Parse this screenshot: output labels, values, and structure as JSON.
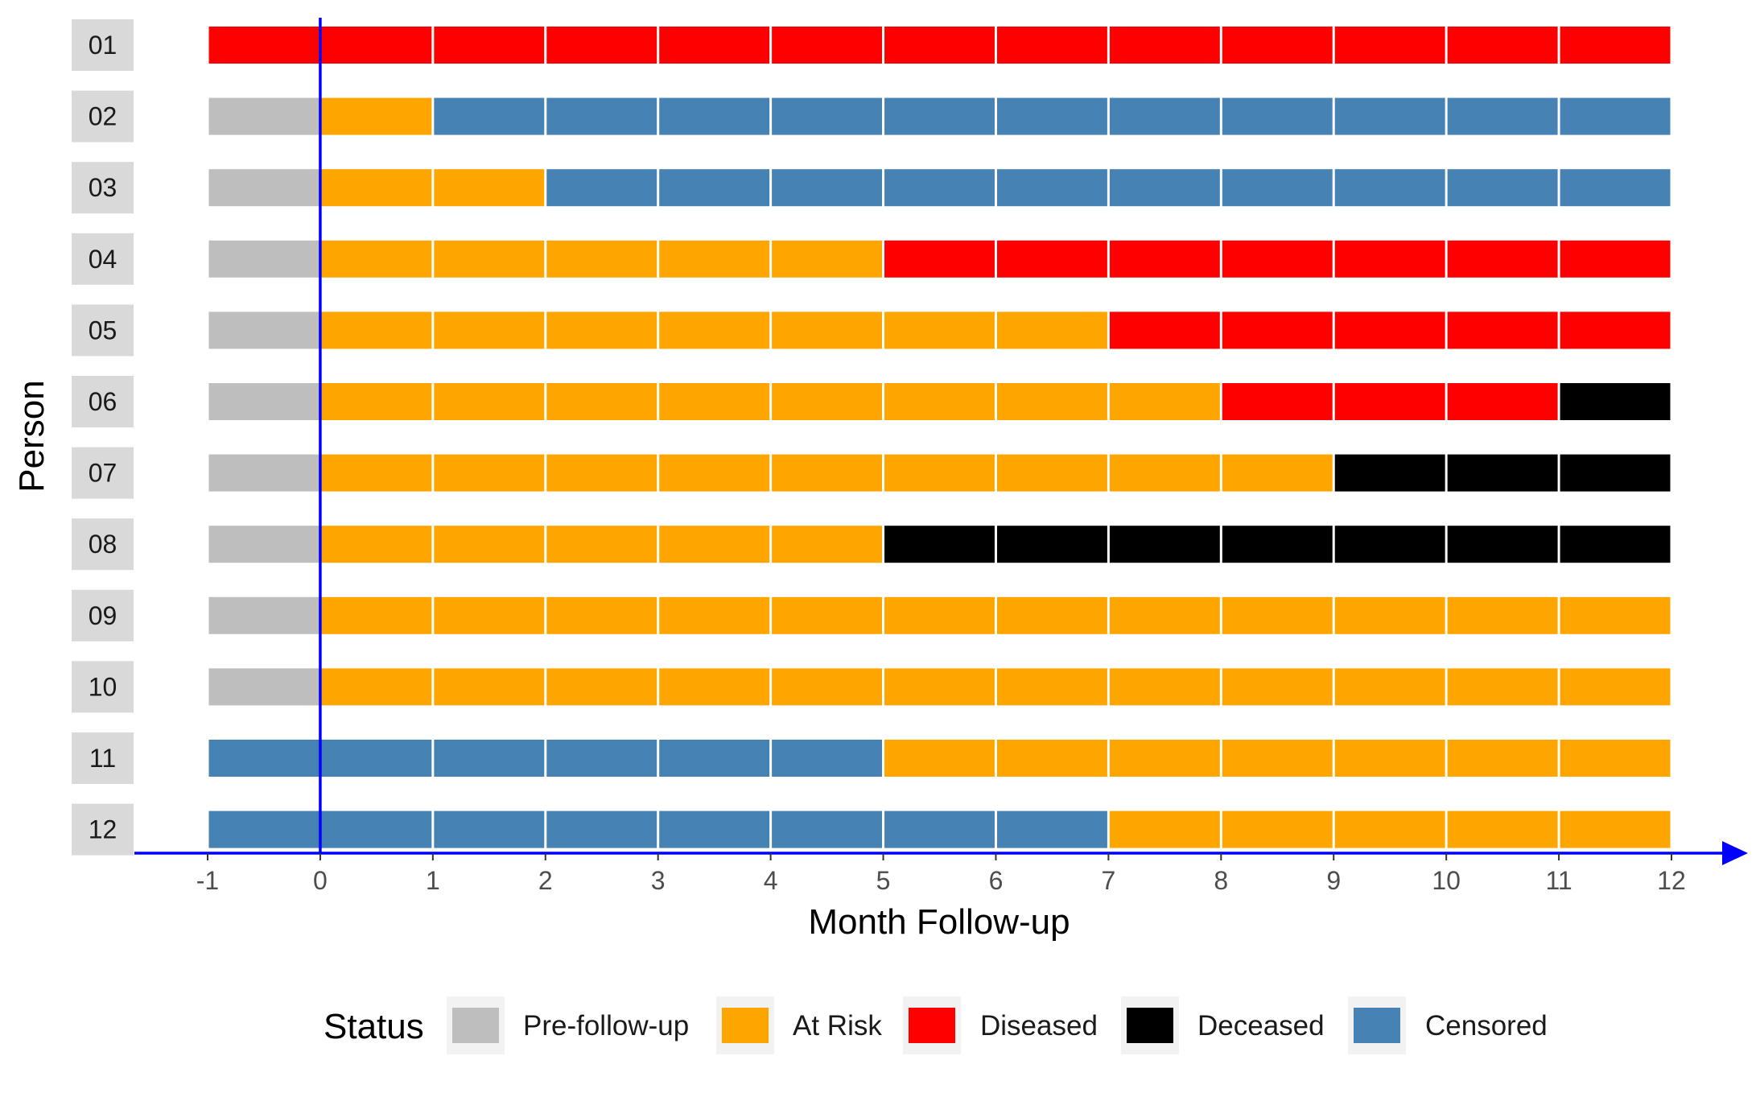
{
  "chart_data": {
    "type": "bar",
    "subtype": "stacked-horizontal-timeline",
    "title": "",
    "xlabel": "Month Follow-up",
    "ylabel": "Person",
    "xlim": [
      -1,
      12
    ],
    "x_ticks": [
      "-1",
      "0",
      "1",
      "2",
      "3",
      "4",
      "5",
      "6",
      "7",
      "8",
      "9",
      "10",
      "11",
      "12"
    ],
    "reference_line_x": 0,
    "reference_line_color": "#0000ff",
    "axis_color": "#0000ff",
    "grid": false,
    "legend": {
      "title": "Status",
      "position": "bottom"
    },
    "statuses": [
      {
        "name": "Pre-follow-up",
        "color": "#bebebe"
      },
      {
        "name": "At Risk",
        "color": "#ffa500"
      },
      {
        "name": "Diseased",
        "color": "#ff0000"
      },
      {
        "name": "Deceased",
        "color": "#000000"
      },
      {
        "name": "Censored",
        "color": "#4682b4"
      }
    ],
    "persons": [
      {
        "id": "01",
        "segments": [
          {
            "status": "Diseased",
            "start": -1,
            "end": 12
          }
        ]
      },
      {
        "id": "02",
        "segments": [
          {
            "status": "Pre-follow-up",
            "start": -1,
            "end": 0
          },
          {
            "status": "At Risk",
            "start": 0,
            "end": 1
          },
          {
            "status": "Censored",
            "start": 1,
            "end": 12
          }
        ]
      },
      {
        "id": "03",
        "segments": [
          {
            "status": "Pre-follow-up",
            "start": -1,
            "end": 0
          },
          {
            "status": "At Risk",
            "start": 0,
            "end": 2
          },
          {
            "status": "Censored",
            "start": 2,
            "end": 12
          }
        ]
      },
      {
        "id": "04",
        "segments": [
          {
            "status": "Pre-follow-up",
            "start": -1,
            "end": 0
          },
          {
            "status": "At Risk",
            "start": 0,
            "end": 5
          },
          {
            "status": "Diseased",
            "start": 5,
            "end": 12
          }
        ]
      },
      {
        "id": "05",
        "segments": [
          {
            "status": "Pre-follow-up",
            "start": -1,
            "end": 0
          },
          {
            "status": "At Risk",
            "start": 0,
            "end": 7
          },
          {
            "status": "Diseased",
            "start": 7,
            "end": 12
          }
        ]
      },
      {
        "id": "06",
        "segments": [
          {
            "status": "Pre-follow-up",
            "start": -1,
            "end": 0
          },
          {
            "status": "At Risk",
            "start": 0,
            "end": 8
          },
          {
            "status": "Diseased",
            "start": 8,
            "end": 11
          },
          {
            "status": "Deceased",
            "start": 11,
            "end": 12
          }
        ]
      },
      {
        "id": "07",
        "segments": [
          {
            "status": "Pre-follow-up",
            "start": -1,
            "end": 0
          },
          {
            "status": "At Risk",
            "start": 0,
            "end": 9
          },
          {
            "status": "Deceased",
            "start": 9,
            "end": 12
          }
        ]
      },
      {
        "id": "08",
        "segments": [
          {
            "status": "Pre-follow-up",
            "start": -1,
            "end": 0
          },
          {
            "status": "At Risk",
            "start": 0,
            "end": 5
          },
          {
            "status": "Deceased",
            "start": 5,
            "end": 12
          }
        ]
      },
      {
        "id": "09",
        "segments": [
          {
            "status": "Pre-follow-up",
            "start": -1,
            "end": 0
          },
          {
            "status": "At Risk",
            "start": 0,
            "end": 12
          }
        ]
      },
      {
        "id": "10",
        "segments": [
          {
            "status": "Pre-follow-up",
            "start": -1,
            "end": 0
          },
          {
            "status": "At Risk",
            "start": 0,
            "end": 12
          }
        ]
      },
      {
        "id": "11",
        "segments": [
          {
            "status": "Censored",
            "start": -1,
            "end": 5
          },
          {
            "status": "At Risk",
            "start": 5,
            "end": 12
          }
        ]
      },
      {
        "id": "12",
        "segments": [
          {
            "status": "Censored",
            "start": -1,
            "end": 7
          },
          {
            "status": "At Risk",
            "start": 7,
            "end": 12
          }
        ]
      }
    ]
  }
}
